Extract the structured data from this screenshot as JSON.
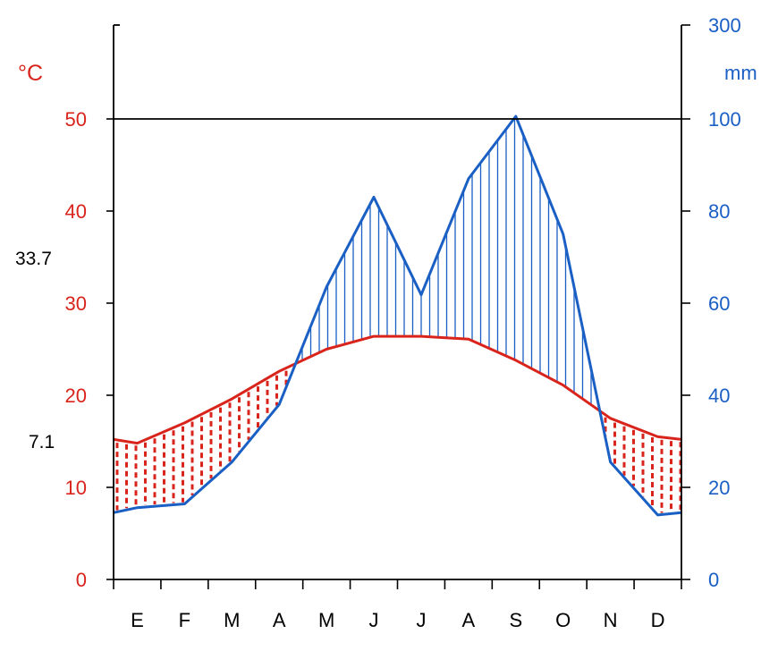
{
  "chart_data": {
    "type": "line",
    "chart_kind": "climate diagram (Walter-Lieth)",
    "categories": [
      "E",
      "F",
      "M",
      "A",
      "M",
      "J",
      "J",
      "A",
      "S",
      "O",
      "N",
      "D"
    ],
    "x": [
      0,
      0.5,
      1.5,
      2.5,
      3.5,
      4.5,
      5.5,
      6.5,
      7.5,
      8.5,
      9.5,
      10.5,
      11.5,
      12
    ],
    "series": [
      {
        "name": "",
        "axis": "left",
        "unit": "°C",
        "color": "#d9241c",
        "values": [
          15.2,
          14.8,
          17.0,
          19.6,
          22.6,
          25.0,
          26.4,
          26.4,
          26.1,
          23.8,
          21.1,
          17.5,
          15.5,
          15.2
        ]
      },
      {
        "name": "",
        "axis": "right",
        "unit": "mm",
        "color": "#1a5fc4",
        "values": [
          14.5,
          15.6,
          16.4,
          25.5,
          38.0,
          63.5,
          83.0,
          61.8,
          87.0,
          105.5,
          75.0,
          25.5,
          14.0,
          14.5
        ]
      }
    ],
    "left_axis": {
      "label": "°C",
      "ylim": [
        0,
        60
      ],
      "ticks": [
        0,
        10,
        20,
        30,
        40,
        50
      ]
    },
    "right_axis": {
      "label": "mm",
      "ylim": [
        0,
        300
      ],
      "ticks": [
        0,
        20,
        40,
        60,
        80,
        100,
        300
      ],
      "scale_break_at": 100
    },
    "reference_line": 50,
    "annotations": [
      {
        "text": "33.7",
        "side": "left"
      },
      {
        "text": "7.1",
        "side": "left"
      }
    ],
    "colors": {
      "temperature": "#d9241c",
      "precipitation": "#1a5fc4",
      "axis": "#000000"
    },
    "grid": false,
    "legend": "none"
  }
}
